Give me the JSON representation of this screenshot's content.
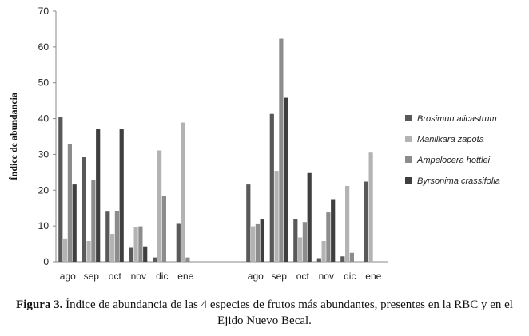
{
  "chart_data": {
    "type": "bar",
    "ylabel": "Índice de abundancia",
    "ylim": [
      0,
      70
    ],
    "yticks": [
      0,
      10,
      20,
      30,
      40,
      50,
      60,
      70
    ],
    "grid": false,
    "legend_position": "right",
    "groups": [
      {
        "categories": [
          "ago",
          "sep",
          "oct",
          "nov",
          "dic",
          "ene"
        ],
        "series": [
          {
            "name": "Brosimun alicastrum",
            "color": "#595959",
            "values": [
              40.5,
              29.2,
              14,
              3.9,
              1.2,
              10.6
            ]
          },
          {
            "name": "Manilkara zapota",
            "color": "#b3b3b3",
            "values": [
              6.5,
              5.8,
              7.8,
              9.7,
              31.1,
              38.9
            ]
          },
          {
            "name": "Ampelocera hottlei",
            "color": "#8c8c8c",
            "values": [
              33,
              22.8,
              14.2,
              9.9,
              18.4,
              1.2
            ]
          },
          {
            "name": "Byrsonima crassifolia",
            "color": "#3f3f3f",
            "values": [
              21.6,
              37,
              37,
              4.3,
              0,
              0
            ]
          }
        ]
      },
      {
        "categories": [
          "ago",
          "sep",
          "oct",
          "nov",
          "dic",
          "ene"
        ],
        "series": [
          {
            "name": "Brosimun alicastrum",
            "color": "#595959",
            "values": [
              21.6,
              41.3,
              12,
              1,
              1.5,
              22.4
            ]
          },
          {
            "name": "Manilkara zapota",
            "color": "#b3b3b3",
            "values": [
              9.9,
              25.4,
              6.8,
              5.8,
              21.2,
              30.5
            ]
          },
          {
            "name": "Ampelocera hottlei",
            "color": "#8c8c8c",
            "values": [
              10.5,
              62.3,
              11.1,
              13.8,
              2.5,
              0
            ]
          },
          {
            "name": "Byrsonima crassifolia",
            "color": "#3f3f3f",
            "values": [
              11.8,
              45.8,
              24.8,
              17.5,
              0,
              0
            ]
          }
        ]
      }
    ]
  },
  "caption": {
    "label": "Figura 3.",
    "text": " Índice de abundancia de las 4 especies de frutos más abundantes, presentes en la RBC y en el Ejido Nuevo Becal."
  }
}
